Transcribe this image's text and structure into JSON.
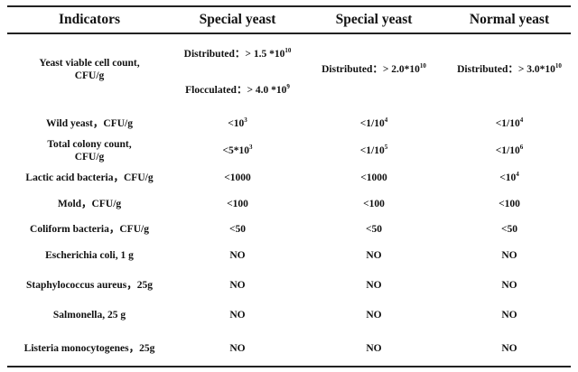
{
  "table": {
    "headers": [
      "Indicators",
      "Special yeast",
      "Special yeast",
      "Normal yeast"
    ],
    "rows": [
      {
        "indicator": [
          "Yeast viable cell count,",
          "CFU/g"
        ],
        "col1": [
          {
            "text": "Distributed：> 1.5 *10",
            "sup": "10"
          },
          {
            "text": "Flocculated：> 4.0 *10",
            "sup": "9"
          }
        ],
        "col2": {
          "text": "Distributed：> 2.0*10",
          "sup": "10"
        },
        "col3": {
          "text": "Distributed：> 3.0*10",
          "sup": "10"
        }
      },
      {
        "indicator": [
          "Wild yeast，CFU/g"
        ],
        "col1": {
          "text": "<10",
          "sup": "3"
        },
        "col2": {
          "text": "<1/10",
          "sup": "4"
        },
        "col3": {
          "text": "<1/10",
          "sup": "4"
        }
      },
      {
        "indicator": [
          "Total colony count,",
          "CFU/g"
        ],
        "col1": {
          "text": "<5*10",
          "sup": "3"
        },
        "col2": {
          "text": "<1/10",
          "sup": "5"
        },
        "col3": {
          "text": "<1/10",
          "sup": "6"
        }
      },
      {
        "indicator": [
          "Lactic acid bacteria，CFU/g"
        ],
        "col1": {
          "text": "<1000"
        },
        "col2": {
          "text": "<1000"
        },
        "col3": {
          "text": "<10",
          "sup": "4"
        }
      },
      {
        "indicator": [
          "Mold，CFU/g"
        ],
        "col1": {
          "text": "<100"
        },
        "col2": {
          "text": "<100"
        },
        "col3": {
          "text": "<100"
        }
      },
      {
        "indicator": [
          "Coliform bacteria，CFU/g"
        ],
        "col1": {
          "text": "<50"
        },
        "col2": {
          "text": "<50"
        },
        "col3": {
          "text": "<50"
        }
      },
      {
        "indicator": [
          "Escherichia coli, 1 g"
        ],
        "col1": {
          "text": "NO"
        },
        "col2": {
          "text": "NO"
        },
        "col3": {
          "text": "NO"
        }
      },
      {
        "indicator": [
          "Staphylococcus aureus，25g"
        ],
        "col1": {
          "text": "NO"
        },
        "col2": {
          "text": "NO"
        },
        "col3": {
          "text": "NO"
        }
      },
      {
        "indicator": [
          "Salmonella, 25 g"
        ],
        "col1": {
          "text": "NO"
        },
        "col2": {
          "text": "NO"
        },
        "col3": {
          "text": "NO"
        }
      },
      {
        "indicator": [
          "Listeria monocytogenes，25g"
        ],
        "col1": {
          "text": "NO"
        },
        "col2": {
          "text": "NO"
        },
        "col3": {
          "text": "NO"
        }
      }
    ]
  }
}
